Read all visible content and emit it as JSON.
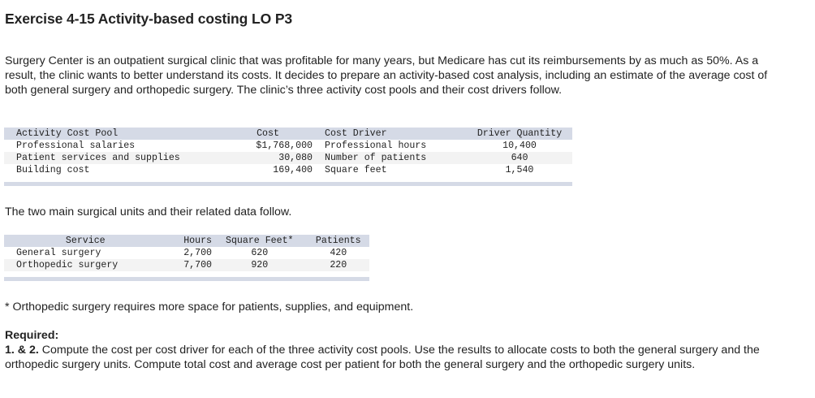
{
  "title": "Exercise 4-15 Activity-based costing LO P3",
  "intro": "Surgery Center is an outpatient surgical clinic that was profitable for many years, but Medicare has cut its reimbursements by as much as 50%. As a result, the clinic wants to better understand its costs. It decides to prepare an activity-based cost analysis, including an estimate of the average cost of both general surgery and orthopedic surgery. The clinic’s three activity cost pools and their cost drivers follow.",
  "activity_table": {
    "headers": {
      "pool": "Activity Cost Pool",
      "cost": "Cost",
      "driver": "Cost Driver",
      "quantity": "Driver Quantity"
    },
    "rows": [
      {
        "pool": "Professional salaries",
        "cost": "$1,768,000",
        "driver": "Professional hours",
        "quantity": "10,400"
      },
      {
        "pool": "Patient services and supplies",
        "cost": "30,080",
        "driver": "Number of patients",
        "quantity": "640"
      },
      {
        "pool": "Building cost",
        "cost": "169,400",
        "driver": "Square feet",
        "quantity": "1,540"
      }
    ]
  },
  "between_text": "The two main surgical units and their related data follow.",
  "service_table": {
    "headers": {
      "service": "Service",
      "hours": "Hours",
      "sqft": "Square Feet*",
      "patients": "Patients"
    },
    "rows": [
      {
        "service": "General surgery",
        "hours": "2,700",
        "sqft": "620",
        "patients": "420"
      },
      {
        "service": "Orthopedic surgery",
        "hours": "7,700",
        "sqft": "920",
        "patients": "220"
      }
    ]
  },
  "footnote": "* Orthopedic surgery requires more space for patients, supplies, and equipment.",
  "required": {
    "label": "Required:",
    "item_label": "1. & 2.",
    "item_text": " Compute the cost per cost driver for each of the three activity cost pools. Use the results to allocate costs to both the general surgery and the orthopedic surgery units. Compute total cost and average cost per patient for both the general surgery and the orthopedic surgery units."
  },
  "colors": {
    "header_band": "#d5dae6",
    "alt_row": "#f3f3f3",
    "text": "#222222"
  }
}
